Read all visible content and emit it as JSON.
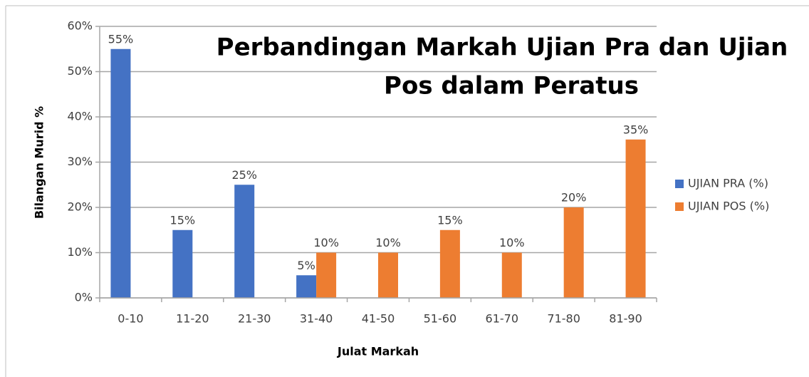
{
  "chart_data": {
    "type": "bar",
    "title": [
      "Perbandingan Markah Ujian Pra dan Ujian",
      "Pos  dalam Peratus"
    ],
    "x_label": "Julat Markah",
    "y_label": "Bilangan Murid %",
    "categories": [
      "0-10",
      "11-20",
      "21-30",
      "31-40",
      "41-50",
      "51-60",
      "61-70",
      "71-80",
      "81-90"
    ],
    "series": [
      {
        "name": "UJIAN PRA (%)",
        "color": "#4472c4",
        "values": [
          55,
          15,
          25,
          5,
          null,
          null,
          null,
          null,
          null
        ],
        "value_labels": [
          "55%",
          "15%",
          "25%",
          "5%",
          null,
          null,
          null,
          null,
          null
        ]
      },
      {
        "name": "UJIAN POS (%)",
        "color": "#ed7d31",
        "values": [
          null,
          null,
          null,
          10,
          10,
          15,
          10,
          20,
          35
        ],
        "value_labels": [
          null,
          null,
          null,
          "10%",
          "10%",
          "15%",
          "10%",
          "20%",
          "35%"
        ]
      }
    ],
    "ylim": [
      0,
      60
    ],
    "yticks": [
      {
        "value": 0,
        "label": "0%"
      },
      {
        "value": 10,
        "label": "10%"
      },
      {
        "value": 20,
        "label": "20%"
      },
      {
        "value": 30,
        "label": "30%"
      },
      {
        "value": 40,
        "label": "40%"
      },
      {
        "value": 50,
        "label": "50%"
      },
      {
        "value": 60,
        "label": "60%"
      }
    ],
    "grid": true,
    "legend": "right"
  }
}
